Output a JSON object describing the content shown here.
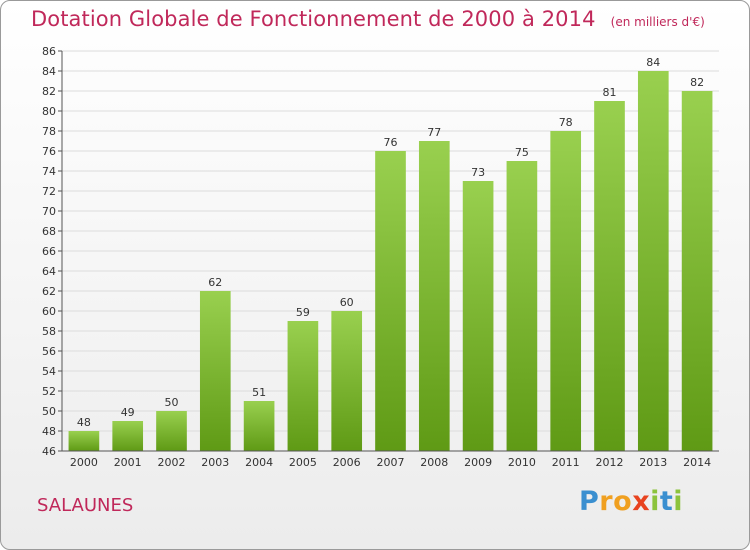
{
  "title": "Dotation Globale de Fonctionnement de 2000 à 2014",
  "unit": "(en milliers d'€)",
  "commune": "SALAUNES",
  "logo": {
    "letters": [
      "P",
      "r",
      "o",
      "x",
      "i",
      "t",
      "i"
    ],
    "colors": [
      "#3a8fd0",
      "#f0a020",
      "#f0a020",
      "#e8431f",
      "#8cc33c",
      "#3a8fd0",
      "#8cc33c"
    ]
  },
  "colors": {
    "bar_top": "#99d04f",
    "bar_bottom": "#5f9a15",
    "title": "#c0285a"
  },
  "chart_data": {
    "type": "bar",
    "categories": [
      "2000",
      "2001",
      "2002",
      "2003",
      "2004",
      "2005",
      "2006",
      "2007",
      "2008",
      "2009",
      "2010",
      "2011",
      "2012",
      "2013",
      "2014"
    ],
    "values": [
      48,
      49,
      50,
      62,
      51,
      59,
      60,
      76,
      77,
      73,
      75,
      78,
      81,
      84,
      82
    ],
    "ylim": [
      46,
      86
    ],
    "yticks": [
      46,
      48,
      50,
      52,
      54,
      56,
      58,
      60,
      62,
      64,
      66,
      68,
      70,
      72,
      74,
      76,
      78,
      80,
      82,
      84,
      86
    ],
    "grid": true
  }
}
